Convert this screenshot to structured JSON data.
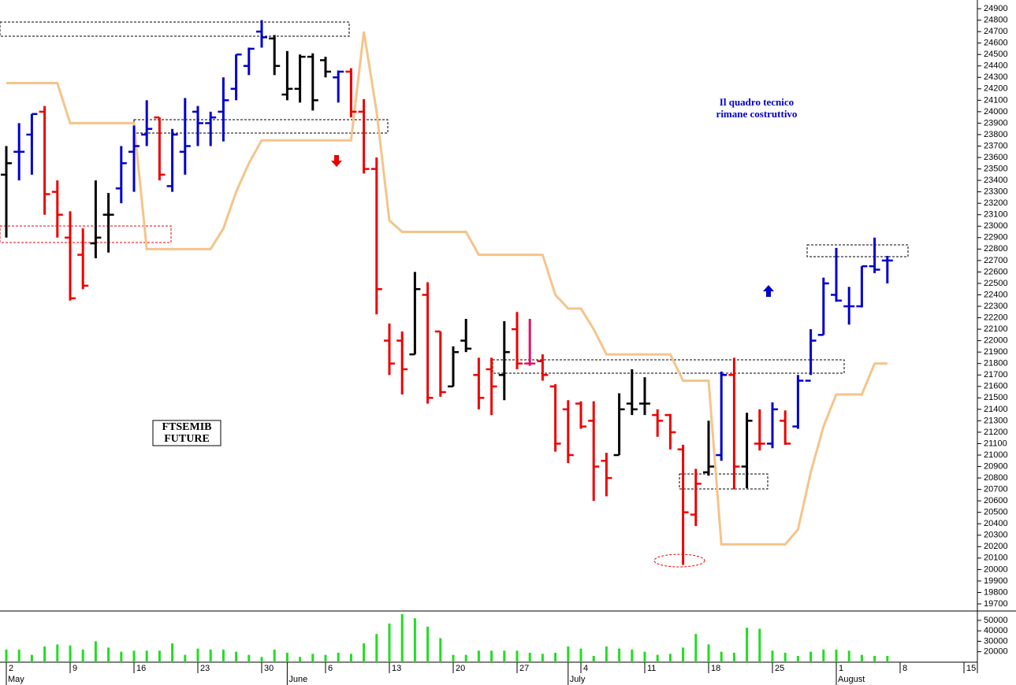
{
  "chart_data": {
    "type": "ohlc",
    "categories": [
      "2",
      null,
      null,
      null,
      null,
      "9",
      null,
      null,
      null,
      null,
      "16",
      null,
      null,
      null,
      null,
      "23",
      null,
      null,
      null,
      null,
      "30",
      null,
      null,
      null,
      null,
      "6",
      null,
      null,
      null,
      null,
      "13",
      null,
      null,
      null,
      null,
      "20",
      null,
      null,
      null,
      null,
      "27",
      null,
      null,
      null,
      null,
      "4",
      null,
      null,
      null,
      null,
      "11",
      null,
      null,
      null,
      null,
      "18",
      null,
      null,
      null,
      null,
      "25",
      null,
      null,
      null,
      null,
      "1",
      null,
      null,
      null,
      null,
      "8",
      null,
      null,
      null,
      null,
      "15"
    ],
    "month_labels": [
      "May",
      null,
      null,
      null,
      null,
      null,
      null,
      null,
      null,
      null,
      null,
      null,
      null,
      null,
      null,
      null,
      null,
      null,
      null,
      null,
      null,
      null,
      "June",
      null,
      null,
      null,
      null,
      null,
      null,
      null,
      null,
      null,
      null,
      null,
      null,
      null,
      null,
      null,
      null,
      null,
      null,
      null,
      null,
      null,
      "July",
      null,
      null,
      null,
      null,
      null,
      null,
      null,
      null,
      null,
      null,
      null,
      null,
      null,
      null,
      null,
      null,
      null,
      null,
      null,
      null,
      "August",
      null,
      null,
      null,
      null,
      null,
      null,
      null,
      null,
      null,
      null
    ],
    "high": [
      23700,
      23900,
      23980,
      24050,
      23400,
      23130,
      22980,
      23400,
      23290,
      23700,
      23880,
      24100,
      23950,
      23850,
      24120,
      24050,
      24000,
      24300,
      24500,
      24560,
      24800,
      24670,
      24530,
      24500,
      24510,
      24480,
      24360,
      24380,
      24110,
      23600,
      22150,
      22080,
      22600,
      22510,
      22080,
      21950,
      22190,
      21850,
      21850,
      22170,
      22250,
      22190,
      21880,
      21620,
      21480,
      21470,
      21470,
      21020,
      21540,
      21750,
      21680,
      21400,
      21360,
      21090,
      20880,
      21300,
      21730,
      21850,
      21370,
      21400,
      21460,
      21390,
      21700,
      22100,
      22550,
      22810,
      22470,
      22650,
      22900,
      22740,
      null,
      null,
      null,
      null,
      null,
      null
    ],
    "low": [
      22900,
      23400,
      23450,
      23100,
      22900,
      22350,
      22450,
      22720,
      22770,
      23200,
      23300,
      23700,
      23400,
      23300,
      23450,
      23700,
      23700,
      23740,
      24100,
      24320,
      24560,
      24320,
      24100,
      24080,
      24010,
      24300,
      24080,
      23950,
      23460,
      22230,
      21700,
      21530,
      21880,
      21450,
      21510,
      21600,
      21900,
      21400,
      21350,
      21480,
      21750,
      21780,
      21650,
      21030,
      20930,
      21230,
      20600,
      20640,
      21000,
      21350,
      21350,
      21160,
      21050,
      20040,
      20380,
      20820,
      20950,
      20700,
      20710,
      21040,
      21060,
      21090,
      21230,
      21700,
      22050,
      22340,
      22140,
      22290,
      22590,
      22500,
      null,
      null,
      null,
      null,
      null,
      null
    ],
    "open": [
      23450,
      23650,
      23800,
      24000,
      23300,
      22900,
      22750,
      22850,
      23100,
      23330,
      23650,
      23800,
      23950,
      23350,
      23650,
      24000,
      23900,
      24000,
      24200,
      24400,
      24700,
      24640,
      24150,
      24200,
      24480,
      24450,
      24300,
      24350,
      24000,
      23500,
      22000,
      22000,
      21880,
      22400,
      22080,
      21600,
      22000,
      21700,
      21750,
      21700,
      22100,
      21800,
      21820,
      21600,
      21400,
      21450,
      21300,
      20950,
      21000,
      21450,
      21450,
      21350,
      21350,
      21050,
      20480,
      20850,
      21000,
      21700,
      20900,
      21100,
      21100,
      21300,
      21250,
      21650,
      22050,
      22400,
      22300,
      22300,
      22650,
      22700,
      null,
      null,
      null,
      null,
      null,
      null
    ],
    "close": [
      23550,
      23650,
      23980,
      23280,
      23100,
      22370,
      22480,
      22900,
      23100,
      23550,
      23700,
      23850,
      23450,
      23800,
      23700,
      23900,
      23950,
      24100,
      24500,
      24550,
      24650,
      24400,
      24200,
      24480,
      24100,
      24350,
      24350,
      24000,
      23500,
      22450,
      21800,
      21750,
      22450,
      21500,
      21550,
      21900,
      21930,
      21500,
      21600,
      21900,
      21800,
      21800,
      21700,
      21100,
      21000,
      21250,
      20900,
      20800,
      21400,
      21400,
      21450,
      21300,
      21200,
      20500,
      20750,
      20900,
      21700,
      20900,
      21300,
      21100,
      21400,
      21100,
      21650,
      22000,
      22500,
      22350,
      22300,
      22650,
      22620,
      22700,
      null,
      null,
      null,
      null,
      null,
      null
    ],
    "colors": [
      "#000000",
      "#0000cc",
      "#0000cc",
      "#ee0000",
      "#ee0000",
      "#ee0000",
      "#ee0000",
      "#000000",
      "#000000",
      "#0000cc",
      "#0000cc",
      "#0000cc",
      "#ee0000",
      "#0000cc",
      "#0000cc",
      "#0000cc",
      "#0000cc",
      "#0000cc",
      "#0000cc",
      "#0000cc",
      "#0000cc",
      "#000000",
      "#000000",
      "#000000",
      "#000000",
      "#000000",
      "#0000cc",
      "#ee0000",
      "#ee0000",
      "#ee0000",
      "#ee0000",
      "#ee0000",
      "#000000",
      "#ee0000",
      "#ee0000",
      "#000000",
      "#000000",
      "#ee0000",
      "#ee0000",
      "#000000",
      "#ee0000",
      "#e0106a",
      "#ee0000",
      "#ee0000",
      "#ee0000",
      "#ee0000",
      "#ee0000",
      "#ee0000",
      "#000000",
      "#000000",
      "#000000",
      "#ee0000",
      "#ee0000",
      "#ee0000",
      "#ee0000",
      "#000000",
      "#0000cc",
      "#ee0000",
      "#000000",
      "#ee0000",
      "#0000cc",
      "#ee0000",
      "#0000cc",
      "#0000cc",
      "#0000cc",
      "#0000cc",
      "#0000cc",
      "#0000cc",
      "#0000cc",
      "#0000cc",
      null,
      null,
      null,
      null,
      null,
      null
    ],
    "ylim": [
      19638,
      24976
    ],
    "yticks": [
      19700,
      19800,
      19900,
      20000,
      20100,
      20200,
      20300,
      20400,
      20500,
      20600,
      20700,
      20800,
      20900,
      21000,
      21100,
      21200,
      21300,
      21400,
      21500,
      21600,
      21700,
      21800,
      21900,
      22000,
      22100,
      22200,
      22300,
      22400,
      22500,
      22600,
      22700,
      22800,
      22900,
      23000,
      23100,
      23200,
      23300,
      23400,
      23500,
      23600,
      23700,
      23800,
      23900,
      24000,
      24100,
      24200,
      24300,
      24400,
      24500,
      24600,
      24700,
      24800,
      24900
    ],
    "trailing": {
      "color": "#f5c48a",
      "values": [
        24250,
        24250,
        24250,
        24250,
        24250,
        23900,
        23900,
        23900,
        23900,
        23900,
        23900,
        22800,
        22800,
        22800,
        22800,
        22800,
        22800,
        22980,
        23300,
        23550,
        23750,
        23750,
        23750,
        23750,
        23750,
        23750,
        23750,
        23750,
        24700,
        24000,
        23050,
        22950,
        22950,
        22950,
        22950,
        22950,
        22950,
        22750,
        22750,
        22750,
        22750,
        22750,
        22750,
        22400,
        22280,
        22280,
        22100,
        21880,
        21880,
        21880,
        21880,
        21880,
        21880,
        21650,
        21650,
        21650,
        20220,
        20220,
        20220,
        20220,
        20220,
        20220,
        20350,
        20850,
        21250,
        21530,
        21530,
        21530,
        21800,
        21800,
        null,
        null,
        null,
        null,
        null,
        null
      ]
    },
    "volume": {
      "color": "#22dd22",
      "ylim": [
        10000,
        59000
      ],
      "yticks": [
        20000,
        30000,
        40000,
        50000
      ],
      "values": [
        22000,
        22000,
        17000,
        25000,
        27000,
        26000,
        22000,
        30000,
        24000,
        20000,
        21000,
        21000,
        21000,
        28000,
        17000,
        23000,
        22000,
        22000,
        20000,
        17000,
        15000,
        22000,
        19000,
        15000,
        18000,
        17000,
        19000,
        18000,
        28000,
        37000,
        47000,
        56000,
        52000,
        44000,
        33000,
        17000,
        17000,
        21000,
        21000,
        21000,
        21000,
        19000,
        18000,
        19000,
        25000,
        23000,
        16000,
        25000,
        23000,
        22000,
        20000,
        17000,
        18000,
        24000,
        37000,
        27000,
        20000,
        19000,
        43000,
        42000,
        21000,
        19000,
        16000,
        20000,
        22000,
        22000,
        21000,
        17000,
        16000,
        16000,
        null,
        null,
        null,
        null,
        null,
        null
      ]
    },
    "annotation": [
      "Il quadro tecnico",
      "rimane costruttivo"
    ],
    "instrument": [
      "FTSEMIB",
      "FUTURE"
    ]
  }
}
